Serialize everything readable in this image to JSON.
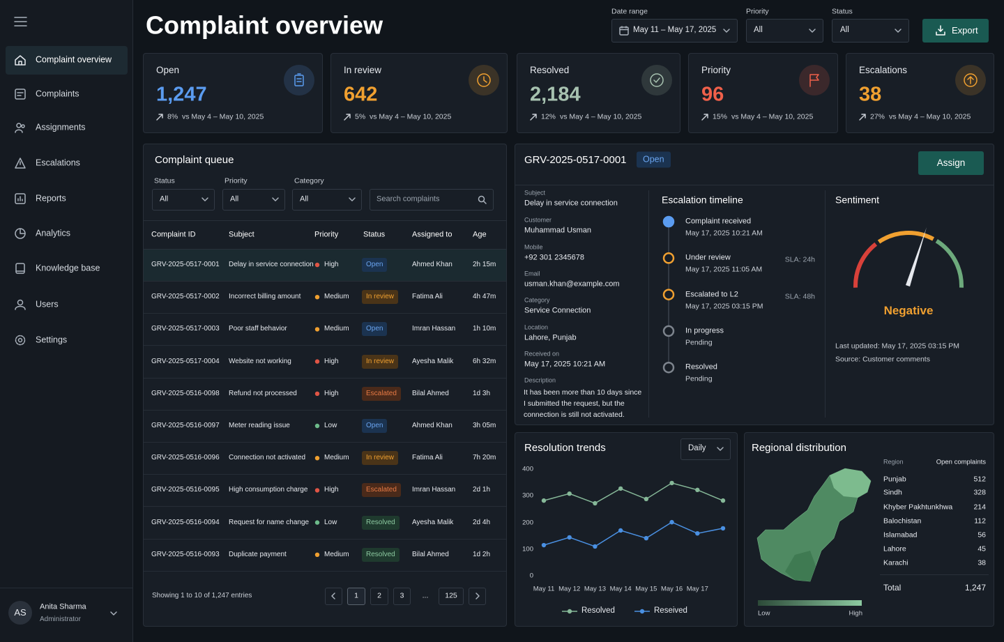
{
  "sidebar": {
    "nav": [
      "Complaint overview",
      "Complaints",
      "Assignments",
      "Escalations",
      "Reports",
      "Analytics",
      "Knowledge base",
      "Users",
      "Settings"
    ],
    "user": {
      "initials": "AS",
      "name": "Anita Sharma",
      "role": "Administrator"
    }
  },
  "header": {
    "title": "Complaint overview",
    "filters": [
      {
        "label": "Date range",
        "value": "May 11 – May 17, 2025"
      },
      {
        "label": "Priority",
        "value": "All"
      },
      {
        "label": "Status",
        "value": "All"
      }
    ],
    "export": "Export"
  },
  "kpis": [
    {
      "label": "Open",
      "value": "1,247",
      "change": "8%",
      "compare": "vs May 4 – May 10, 2025",
      "color": "#5b9cf0"
    },
    {
      "label": "In review",
      "value": "642",
      "change": "5%",
      "compare": "vs May 4 – May 10, 2025",
      "color": "#f0a030"
    },
    {
      "label": "Resolved",
      "value": "2,184",
      "change": "12%",
      "compare": "vs May 4 – May 10, 2025",
      "color": "#a7c2b0"
    },
    {
      "label": "Priority",
      "value": "96",
      "change": "15%",
      "compare": "vs May 4 – May 10, 2025",
      "color": "#f0604a"
    },
    {
      "label": "Escalations",
      "value": "38",
      "change": "27%",
      "compare": "vs May 4 – May 10, 2025",
      "color": "#f0a030"
    }
  ],
  "queue": {
    "title": "Complaint queue",
    "filters": [
      {
        "label": "Status",
        "value": "All"
      },
      {
        "label": "Priority",
        "value": "All"
      },
      {
        "label": "Category",
        "value": "All"
      }
    ],
    "search": "Search complaints",
    "columns": [
      "Complaint ID",
      "Subject",
      "Priority",
      "Status",
      "Assigned to",
      "Age"
    ],
    "rows": [
      [
        "GRV-2025-0517-0001",
        "Delay in service connection",
        "High",
        "Open",
        "Ahmed Khan",
        "2h 15m"
      ],
      [
        "GRV-2025-0517-0002",
        "Incorrect billing amount",
        "Medium",
        "In review",
        "Fatima Ali",
        "4h 47m"
      ],
      [
        "GRV-2025-0517-0003",
        "Poor staff behavior",
        "Medium",
        "Open",
        "Imran Hassan",
        "1h 10m"
      ],
      [
        "GRV-2025-0517-0004",
        "Website not working",
        "High",
        "In review",
        "Ayesha Malik",
        "6h 32m"
      ],
      [
        "GRV-2025-0516-0098",
        "Refund not processed",
        "High",
        "Escalated",
        "Bilal Ahmed",
        "1d 3h"
      ],
      [
        "GRV-2025-0516-0097",
        "Meter reading issue",
        "Low",
        "Open",
        "Ahmed Khan",
        "3h 05m"
      ],
      [
        "GRV-2025-0516-0096",
        "Connection not activated",
        "Medium",
        "In review",
        "Fatima Ali",
        "7h 20m"
      ],
      [
        "GRV-2025-0516-0095",
        "High consumption charge",
        "High",
        "Escalated",
        "Imran Hassan",
        "2d 1h"
      ],
      [
        "GRV-2025-0516-0094",
        "Request for name change",
        "Low",
        "Resolved",
        "Ayesha Malik",
        "2d 4h"
      ],
      [
        "GRV-2025-0516-0093",
        "Duplicate payment",
        "Medium",
        "Resolved",
        "Bilal Ahmed",
        "1d 2h"
      ]
    ],
    "priority_colors": {
      "High": "#e05545",
      "Medium": "#f0a030",
      "Low": "#6dbb8a"
    },
    "status_colors": {
      "Open": [
        "#1b3350",
        "#6aa5f0"
      ],
      "In review": [
        "#4a3418",
        "#f0a030"
      ],
      "Escalated": [
        "#4a2a1a",
        "#e77a45"
      ],
      "Resolved": [
        "#1f3a2e",
        "#8cc9a0"
      ]
    },
    "footer": "Showing 1 to 10 of 1,247 entries",
    "pages": [
      "1",
      "2",
      "3",
      "...",
      "125"
    ]
  },
  "detail": {
    "id": "GRV-2025-0517-0001",
    "status": "Open",
    "assign": "Assign",
    "fields": [
      {
        "label": "Subject",
        "value": "Delay in service connection"
      },
      {
        "label": "Customer",
        "value": "Muhammad Usman"
      },
      {
        "label": "Mobile",
        "value": "+92 301 2345678"
      },
      {
        "label": "Email",
        "value": "usman.khan@example.com"
      },
      {
        "label": "Category",
        "value": "Service Connection"
      },
      {
        "label": "Location",
        "value": "Lahore, Punjab"
      },
      {
        "label": "Received on",
        "value": "May 17, 2025 10:21 AM"
      },
      {
        "label": "Description",
        "value": "It has been more than 10 days since I submitted the request, but the connection is still not activated."
      }
    ],
    "timeline_title": "Escalation timeline",
    "timeline": [
      {
        "title": "Complaint received",
        "sub": "May 17, 2025 10:21 AM",
        "stroke": "#5b9cf0",
        "fill": "#5b9cf0"
      },
      {
        "title": "Under review",
        "sub": "May 17, 2025 11:05 AM",
        "sla": "SLA: 24h",
        "stroke": "#f0a030",
        "fill": "#181e26"
      },
      {
        "title": "Escalated to L2",
        "sub": "May 17, 2025 03:15 PM",
        "sla": "SLA: 48h",
        "stroke": "#f0a030",
        "fill": "#181e26"
      },
      {
        "title": "In progress",
        "sub": "Pending",
        "stroke": "#7d848d",
        "fill": "#181e26"
      },
      {
        "title": "Resolved",
        "sub": "Pending",
        "stroke": "#7d848d",
        "fill": "#181e26"
      }
    ],
    "sentiment": {
      "title": "Sentiment",
      "value": "Negative",
      "color": "#f0a030",
      "updated": "Last updated: May 17, 2025 03:15 PM",
      "source": "Source: Customer comments"
    }
  },
  "chart_data": {
    "type": "line",
    "title": "Resolution trends",
    "period": "Daily",
    "categories": [
      "May 11",
      "May 12",
      "May 13",
      "May 14",
      "May 15",
      "May 16",
      "May 17",
      null
    ],
    "series": [
      {
        "name": "Resolved",
        "color": "#86b898",
        "values": [
          282,
          308,
          272,
          327,
          288,
          348,
          322,
          282
        ]
      },
      {
        "name": "Reseived",
        "color": "#4a90e2",
        "values": [
          115,
          144,
          110,
          170,
          141,
          201,
          159,
          178
        ]
      }
    ],
    "ylim": [
      0,
      400
    ],
    "yticks": [
      0,
      100,
      200,
      300,
      400
    ],
    "grid": false
  },
  "regional": {
    "title": "Regional distribution",
    "columns": [
      "Region",
      "Open complaints"
    ],
    "rows": [
      [
        "Punjab",
        "512"
      ],
      [
        "Sindh",
        "328"
      ],
      [
        "Khyber Pakhtunkhwa",
        "214"
      ],
      [
        "Balochistan",
        "112"
      ],
      [
        "Islamabad",
        "56"
      ],
      [
        "Lahore",
        "45"
      ],
      [
        "Karachi",
        "38"
      ]
    ],
    "total": [
      "Total",
      "1,247"
    ],
    "legend": [
      "Low",
      "High"
    ]
  }
}
